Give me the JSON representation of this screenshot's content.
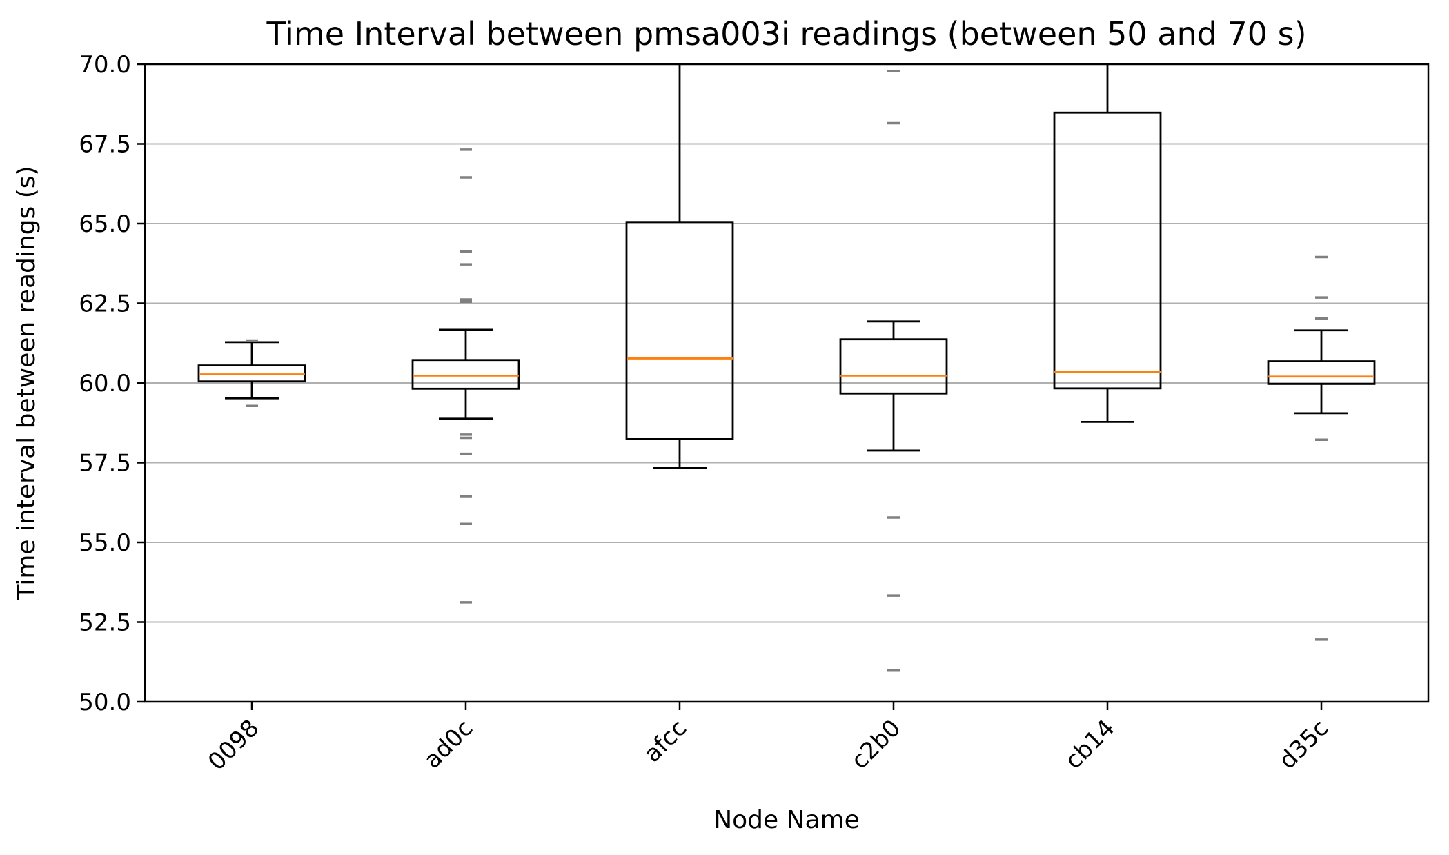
{
  "chart_data": {
    "type": "box",
    "title": "Time Interval between pmsa003i readings (between 50 and 70 s)",
    "xlabel": "Node Name",
    "ylabel": "Time interval between readings (s)",
    "ylim": [
      50,
      70
    ],
    "yticks": [
      "50.0",
      "52.5",
      "55.0",
      "57.5",
      "60.0",
      "62.5",
      "65.0",
      "67.5",
      "70.0"
    ],
    "grid": "horizontal",
    "categories": [
      "0098",
      "ad0c",
      "afcc",
      "c2b0",
      "cb14",
      "d35c"
    ],
    "boxes": [
      {
        "q1": 60.05,
        "median": 60.27,
        "q3": 60.55,
        "whisker_low": 59.52,
        "whisker_high": 61.28,
        "outliers": [
          59.28,
          61.33
        ]
      },
      {
        "q1": 59.82,
        "median": 60.23,
        "q3": 60.72,
        "whisker_low": 58.88,
        "whisker_high": 61.67,
        "outliers": [
          53.12,
          55.58,
          56.45,
          57.78,
          58.28,
          58.38,
          62.55,
          62.62,
          63.72,
          64.12,
          66.45,
          67.32
        ]
      },
      {
        "q1": 58.25,
        "median": 60.77,
        "q3": 65.05,
        "whisker_low": 57.33,
        "whisker_high": 70.0,
        "outliers": []
      },
      {
        "q1": 59.67,
        "median": 60.23,
        "q3": 61.37,
        "whisker_low": 57.88,
        "whisker_high": 61.93,
        "outliers": [
          50.98,
          53.33,
          55.78,
          68.15,
          69.78
        ]
      },
      {
        "q1": 59.83,
        "median": 60.35,
        "q3": 68.48,
        "whisker_low": 58.78,
        "whisker_high": 70.0,
        "outliers": []
      },
      {
        "q1": 59.97,
        "median": 60.2,
        "q3": 60.68,
        "whisker_low": 59.05,
        "whisker_high": 61.65,
        "outliers": [
          51.95,
          58.22,
          62.02,
          62.68,
          63.95
        ]
      }
    ],
    "colors": {
      "box": "#000000",
      "median": "#ff7f0e",
      "outlier": "#808080",
      "grid": "#b0b0b0"
    }
  }
}
